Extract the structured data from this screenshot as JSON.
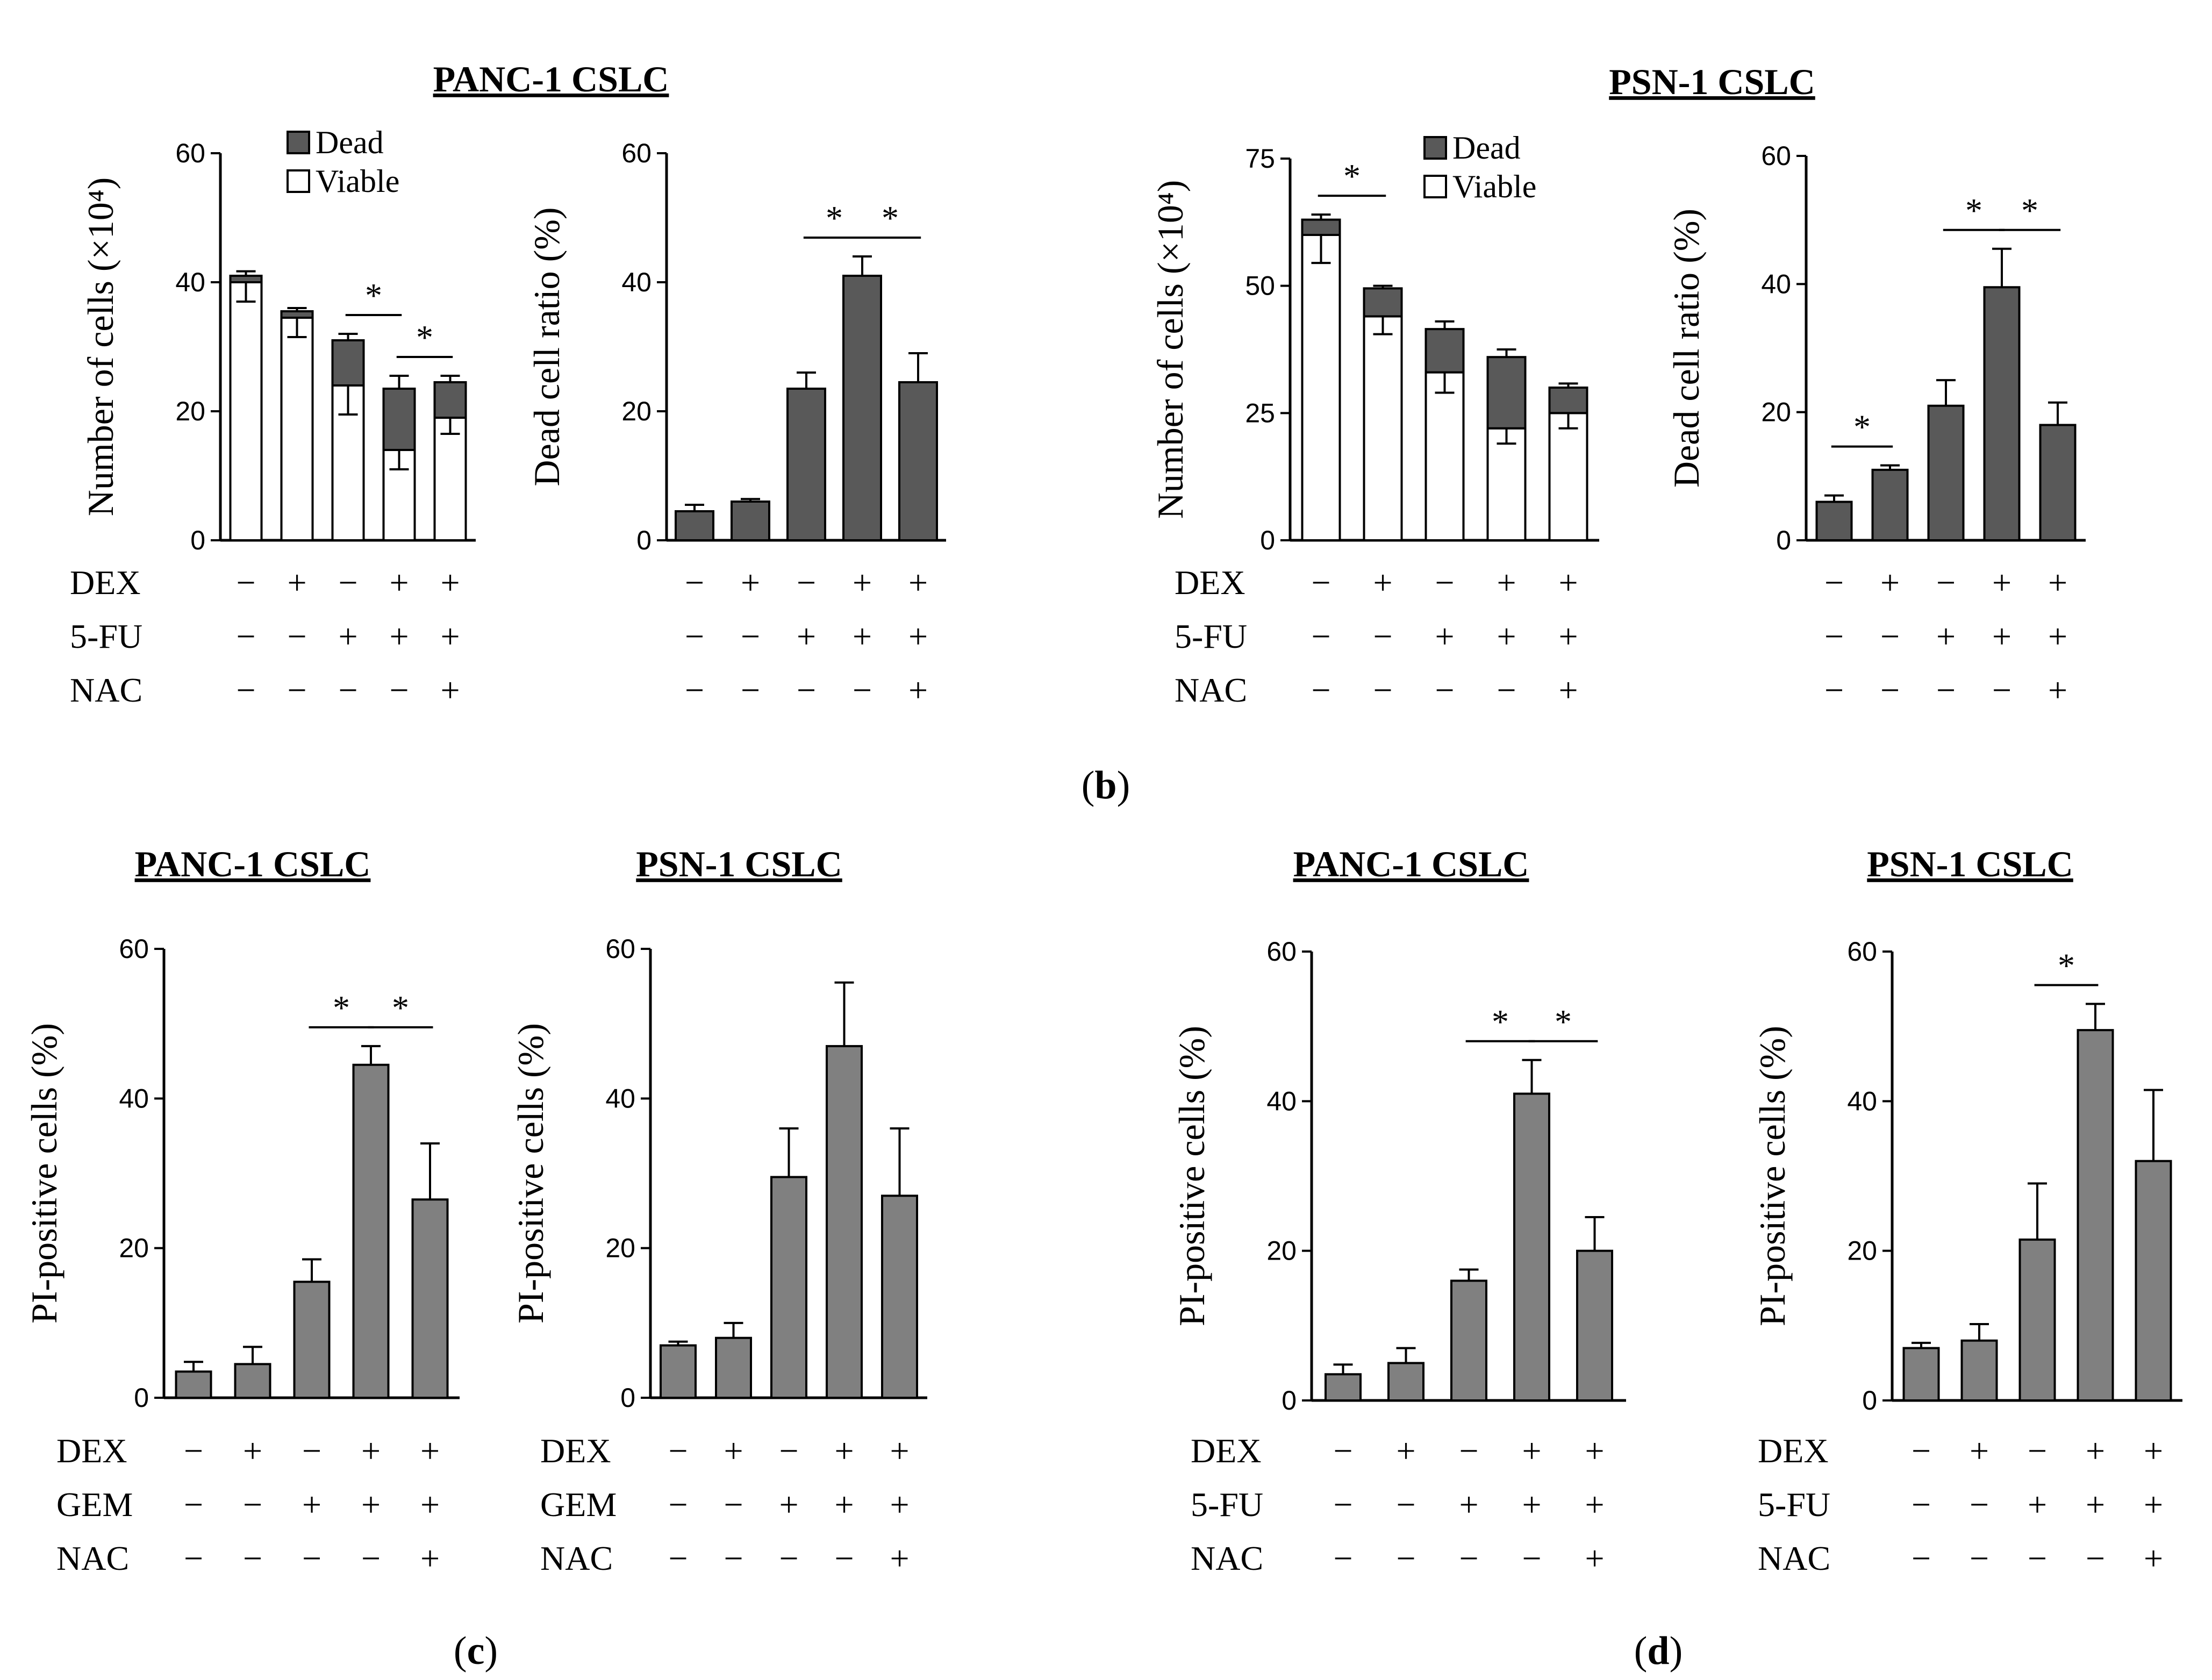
{
  "figure": {
    "panel_labels": [
      {
        "open": "(",
        "letter": "b",
        "close": ")"
      },
      {
        "open": "(",
        "letter": "c",
        "close": ")"
      },
      {
        "open": "(",
        "letter": "d",
        "close": ")"
      }
    ],
    "signs": {
      "minus": "−",
      "plus": "+"
    },
    "star": "*",
    "colors": {
      "dead": "#595959",
      "bar": "#808080",
      "viable": "#ffffff",
      "line": "#000000"
    }
  },
  "chart_data": [
    {
      "id": "b1",
      "panel": "b",
      "type": "bar",
      "stacked": true,
      "title": "PANC-1 CSLC",
      "ylabel": "Number of cells (×10⁴)",
      "ylim": [
        0,
        60
      ],
      "yticks": [
        "0",
        "20",
        "40",
        "60"
      ],
      "legend": {
        "placement": "top-center",
        "entries": [
          "Dead",
          "Viable"
        ]
      },
      "series": [
        {
          "name": "Viable",
          "values": [
            40,
            34.5,
            24,
            14,
            19
          ],
          "errors": [
            3,
            3,
            4.5,
            3,
            2.5
          ]
        },
        {
          "name": "Dead",
          "values": [
            1,
            1,
            7,
            9.5,
            5.5
          ],
          "errors": [
            0.7,
            0.5,
            1,
            2,
            1
          ]
        }
      ],
      "significance": [
        {
          "from": 2,
          "to": 3
        },
        {
          "from": 3,
          "to": 4
        }
      ],
      "conditions": [
        {
          "label": "DEX",
          "signs": [
            "−",
            "+",
            "−",
            "+",
            "+"
          ]
        },
        {
          "label": "5-FU",
          "signs": [
            "−",
            "−",
            "+",
            "+",
            "+"
          ]
        },
        {
          "label": "NAC",
          "signs": [
            "−",
            "−",
            "−",
            "−",
            "+"
          ]
        }
      ]
    },
    {
      "id": "b2",
      "panel": "b",
      "type": "bar",
      "title": "",
      "ylabel": "Dead cell ratio (%)",
      "ylim": [
        0,
        60
      ],
      "yticks": [
        "0",
        "20",
        "40",
        "60"
      ],
      "values": [
        4.5,
        6,
        23.5,
        41,
        24.5
      ],
      "errors": [
        1,
        0.4,
        2.5,
        3,
        4.5
      ],
      "significance": [
        {
          "from": 2,
          "to": 3
        },
        {
          "from": 3,
          "to": 4
        }
      ],
      "conditions": [
        {
          "label": "",
          "signs": [
            "−",
            "+",
            "−",
            "+",
            "+"
          ]
        },
        {
          "label": "",
          "signs": [
            "−",
            "−",
            "+",
            "+",
            "+"
          ]
        },
        {
          "label": "",
          "signs": [
            "−",
            "−",
            "−",
            "−",
            "+"
          ]
        }
      ]
    },
    {
      "id": "b3",
      "panel": "b",
      "type": "bar",
      "stacked": true,
      "title": "PSN-1 CSLC",
      "ylabel": "Number of cells (×10⁴)",
      "ylim": [
        0,
        75
      ],
      "yticks": [
        "0",
        "25",
        "50",
        "75"
      ],
      "legend": {
        "placement": "top-center",
        "entries": [
          "Dead",
          "Viable"
        ]
      },
      "series": [
        {
          "name": "Viable",
          "values": [
            60,
            44,
            33,
            22,
            25
          ],
          "errors": [
            5.5,
            3.5,
            4,
            3,
            3
          ]
        },
        {
          "name": "Dead",
          "values": [
            3,
            5.5,
            8.5,
            14,
            5
          ],
          "errors": [
            1,
            0.5,
            1.5,
            1.5,
            0.8
          ]
        }
      ],
      "significance": [
        {
          "from": 0,
          "to": 1
        }
      ],
      "conditions": [
        {
          "label": "DEX",
          "signs": [
            "−",
            "+",
            "−",
            "+",
            "+"
          ]
        },
        {
          "label": "5-FU",
          "signs": [
            "−",
            "−",
            "+",
            "+",
            "+"
          ]
        },
        {
          "label": "NAC",
          "signs": [
            "−",
            "−",
            "−",
            "−",
            "+"
          ]
        }
      ]
    },
    {
      "id": "b4",
      "panel": "b",
      "type": "bar",
      "title": "",
      "ylabel": "Dead cell ratio (%)",
      "ylim": [
        0,
        60
      ],
      "yticks": [
        "0",
        "20",
        "40",
        "60"
      ],
      "values": [
        6,
        11,
        21,
        39.5,
        18
      ],
      "errors": [
        1,
        0.7,
        4,
        6,
        3.5
      ],
      "significance": [
        {
          "from": 0,
          "to": 1
        },
        {
          "from": 2,
          "to": 3
        },
        {
          "from": 3,
          "to": 4
        }
      ],
      "conditions": [
        {
          "label": "",
          "signs": [
            "−",
            "+",
            "−",
            "+",
            "+"
          ]
        },
        {
          "label": "",
          "signs": [
            "−",
            "−",
            "+",
            "+",
            "+"
          ]
        },
        {
          "label": "",
          "signs": [
            "−",
            "−",
            "−",
            "−",
            "+"
          ]
        }
      ]
    },
    {
      "id": "c1",
      "panel": "c",
      "type": "bar",
      "title": "PANC-1 CSLC",
      "ylabel": "PI-positive cells (%)",
      "ylim": [
        0,
        60
      ],
      "yticks": [
        "0",
        "20",
        "40",
        "60"
      ],
      "values": [
        3.5,
        4.5,
        15.5,
        44.5,
        26.5
      ],
      "errors": [
        1.3,
        2.3,
        3,
        2.5,
        7.5
      ],
      "significance": [
        {
          "from": 2,
          "to": 3
        },
        {
          "from": 3,
          "to": 4
        }
      ],
      "conditions": [
        {
          "label": "DEX",
          "signs": [
            "−",
            "+",
            "−",
            "+",
            "+"
          ]
        },
        {
          "label": "GEM",
          "signs": [
            "−",
            "−",
            "+",
            "+",
            "+"
          ]
        },
        {
          "label": "NAC",
          "signs": [
            "−",
            "−",
            "−",
            "−",
            "+"
          ]
        }
      ]
    },
    {
      "id": "c2",
      "panel": "c",
      "type": "bar",
      "title": "PSN-1 CSLC",
      "ylabel": "PI-positive cells (%)",
      "ylim": [
        0,
        60
      ],
      "yticks": [
        "0",
        "20",
        "40",
        "60"
      ],
      "values": [
        7,
        8,
        29.5,
        47,
        27
      ],
      "errors": [
        0.5,
        2,
        6.5,
        8.5,
        9
      ],
      "significance": [],
      "conditions": [
        {
          "label": "DEX",
          "signs": [
            "−",
            "+",
            "−",
            "+",
            "+"
          ]
        },
        {
          "label": "GEM",
          "signs": [
            "−",
            "−",
            "+",
            "+",
            "+"
          ]
        },
        {
          "label": "NAC",
          "signs": [
            "−",
            "−",
            "−",
            "−",
            "+"
          ]
        }
      ]
    },
    {
      "id": "d1",
      "panel": "d",
      "type": "bar",
      "title": "PANC-1 CSLC",
      "ylabel": "PI-positive cells (%)",
      "ylim": [
        0,
        60
      ],
      "yticks": [
        "0",
        "20",
        "40",
        "60"
      ],
      "values": [
        3.5,
        5,
        16,
        41,
        20
      ],
      "errors": [
        1.3,
        2,
        1.5,
        4.5,
        4.5
      ],
      "significance": [
        {
          "from": 2,
          "to": 3
        },
        {
          "from": 3,
          "to": 4
        }
      ],
      "conditions": [
        {
          "label": "DEX",
          "signs": [
            "−",
            "+",
            "−",
            "+",
            "+"
          ]
        },
        {
          "label": "5-FU",
          "signs": [
            "−",
            "−",
            "+",
            "+",
            "+"
          ]
        },
        {
          "label": "NAC",
          "signs": [
            "−",
            "−",
            "−",
            "−",
            "+"
          ]
        }
      ]
    },
    {
      "id": "d2",
      "panel": "d",
      "type": "bar",
      "title": "PSN-1 CSLC",
      "ylabel": "PI-positive cells (%)",
      "ylim": [
        0,
        60
      ],
      "yticks": [
        "0",
        "20",
        "40",
        "60"
      ],
      "values": [
        7,
        8,
        21.5,
        49.5,
        32
      ],
      "errors": [
        0.7,
        2.2,
        7.5,
        3.5,
        9.5
      ],
      "significance": [
        {
          "from": 2,
          "to": 3
        }
      ],
      "conditions": [
        {
          "label": "DEX",
          "signs": [
            "−",
            "+",
            "−",
            "+",
            "+"
          ]
        },
        {
          "label": "5-FU",
          "signs": [
            "−",
            "−",
            "+",
            "+",
            "+"
          ]
        },
        {
          "label": "NAC",
          "signs": [
            "−",
            "−",
            "−",
            "−",
            "+"
          ]
        }
      ]
    }
  ]
}
